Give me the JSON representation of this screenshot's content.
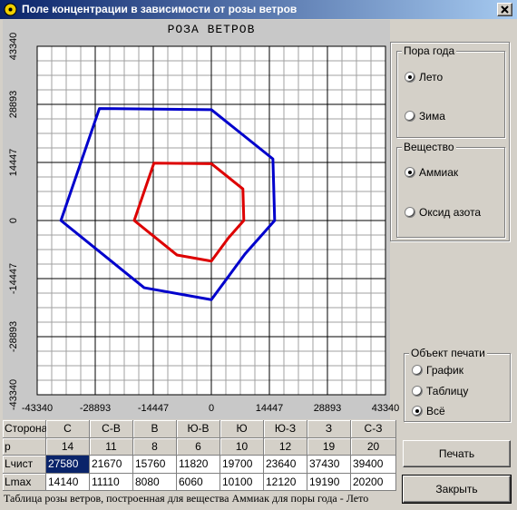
{
  "window": {
    "title": "Поле концентрации в зависимости от розы ветров"
  },
  "chart_data": {
    "type": "radar",
    "title": "РОЗА ВЕТРОВ",
    "categories": [
      "С",
      "С-В",
      "В",
      "Ю-В",
      "Ю",
      "Ю-З",
      "З",
      "С-З"
    ],
    "series": [
      {
        "name": "Lчист",
        "color": "#0000cc",
        "values": [
          27580,
          21670,
          15760,
          11820,
          19700,
          23640,
          37430,
          39400
        ]
      },
      {
        "name": "Lmax",
        "color": "#dd0000",
        "values": [
          14140,
          11110,
          8080,
          6060,
          10100,
          12120,
          19190,
          20200
        ]
      }
    ],
    "xlim": [
      -43340,
      43340
    ],
    "ylim": [
      -43340,
      43340
    ],
    "xticks": [
      -43340,
      -28893,
      -14447,
      0,
      14447,
      28893,
      43340
    ],
    "yticks": [
      -43340,
      -28893,
      -14447,
      0,
      14447,
      28893,
      43340
    ],
    "grid": true
  },
  "table": {
    "side_label": "Сторона",
    "p_label": "p",
    "p": [
      14,
      11,
      8,
      6,
      10,
      12,
      19,
      20
    ]
  },
  "season": {
    "title": "Пора года",
    "options": [
      "Лето",
      "Зима"
    ],
    "selected": 0
  },
  "substance": {
    "title": "Вещество",
    "options": [
      "Аммиак",
      "Оксид азота"
    ],
    "selected": 0
  },
  "print_object": {
    "title": "Объект печати",
    "options": [
      "График",
      "Таблицу",
      "Всё"
    ],
    "selected": 2
  },
  "buttons": {
    "print": "Печать",
    "close": "Закрыть"
  },
  "status": "Таблица розы ветров, построенная для вещества Аммиак для поры года - Лето"
}
